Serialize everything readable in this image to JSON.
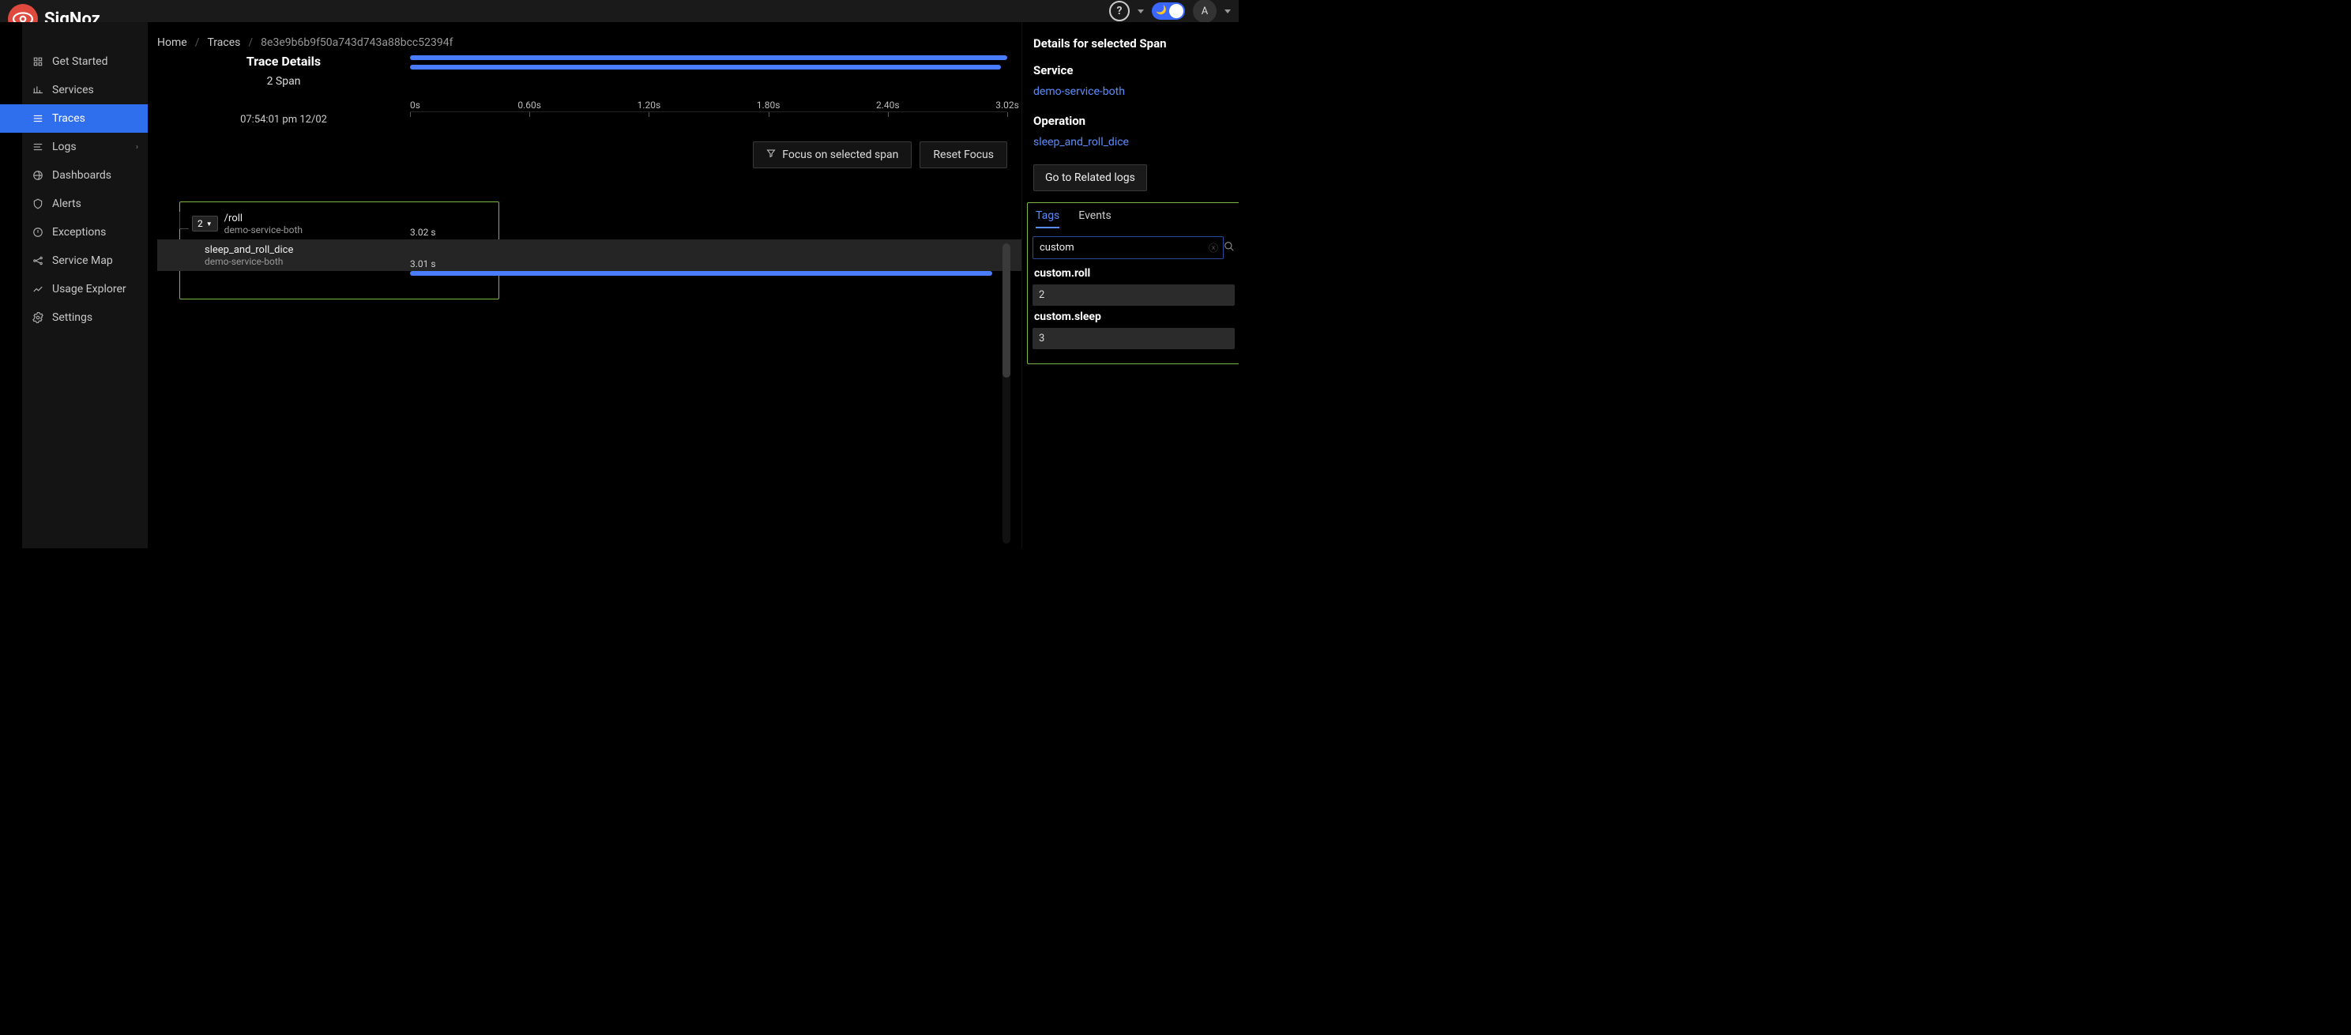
{
  "brand": "SigNoz",
  "topbar": {
    "avatar_initial": "A"
  },
  "sidebar": {
    "items": [
      {
        "label": "Get Started"
      },
      {
        "label": "Services"
      },
      {
        "label": "Traces"
      },
      {
        "label": "Logs"
      },
      {
        "label": "Dashboards"
      },
      {
        "label": "Alerts"
      },
      {
        "label": "Exceptions"
      },
      {
        "label": "Service Map"
      },
      {
        "label": "Usage Explorer"
      },
      {
        "label": "Settings"
      }
    ],
    "active_index": 2,
    "expandable_index": 3
  },
  "breadcrumbs": {
    "home": "Home",
    "traces": "Traces",
    "trace_id": "8e3e9b6b9f50a743d743a88bcc52394f"
  },
  "trace": {
    "title": "Trace Details",
    "span_count_label": "2 Span",
    "timestamp": "07:54:01 pm 12/02",
    "ruler_ticks": [
      "0s",
      "0.60s",
      "1.20s",
      "1.80s",
      "2.40s",
      "3.02s"
    ],
    "focus_btn": "Focus on selected span",
    "reset_btn": "Reset Focus",
    "spans": [
      {
        "name": "/roll",
        "service": "demo-service-both",
        "duration": "3.02 s",
        "children": 2,
        "start_pct": 0,
        "width_pct": 100,
        "selected": false
      },
      {
        "name": "sleep_and_roll_dice",
        "service": "demo-service-both",
        "duration": "3.01 s",
        "children": null,
        "start_pct": 0,
        "width_pct": 99,
        "selected": true
      }
    ]
  },
  "details": {
    "title": "Details for selected Span",
    "service_label": "Service",
    "service_value": "demo-service-both",
    "operation_label": "Operation",
    "operation_value": "sleep_and_roll_dice",
    "related_logs_btn": "Go to Related logs",
    "tabs": {
      "tags": "Tags",
      "events": "Events"
    },
    "filter_value": "custom",
    "tags": [
      {
        "key": "custom.roll",
        "value": "2"
      },
      {
        "key": "custom.sleep",
        "value": "3"
      }
    ]
  },
  "colors": {
    "accent": "#4a7cff",
    "link": "#5b8dff",
    "sidebar_active": "#2f6fed",
    "highlight_border": "#7ab648",
    "logo_bg": "#e0493e"
  }
}
